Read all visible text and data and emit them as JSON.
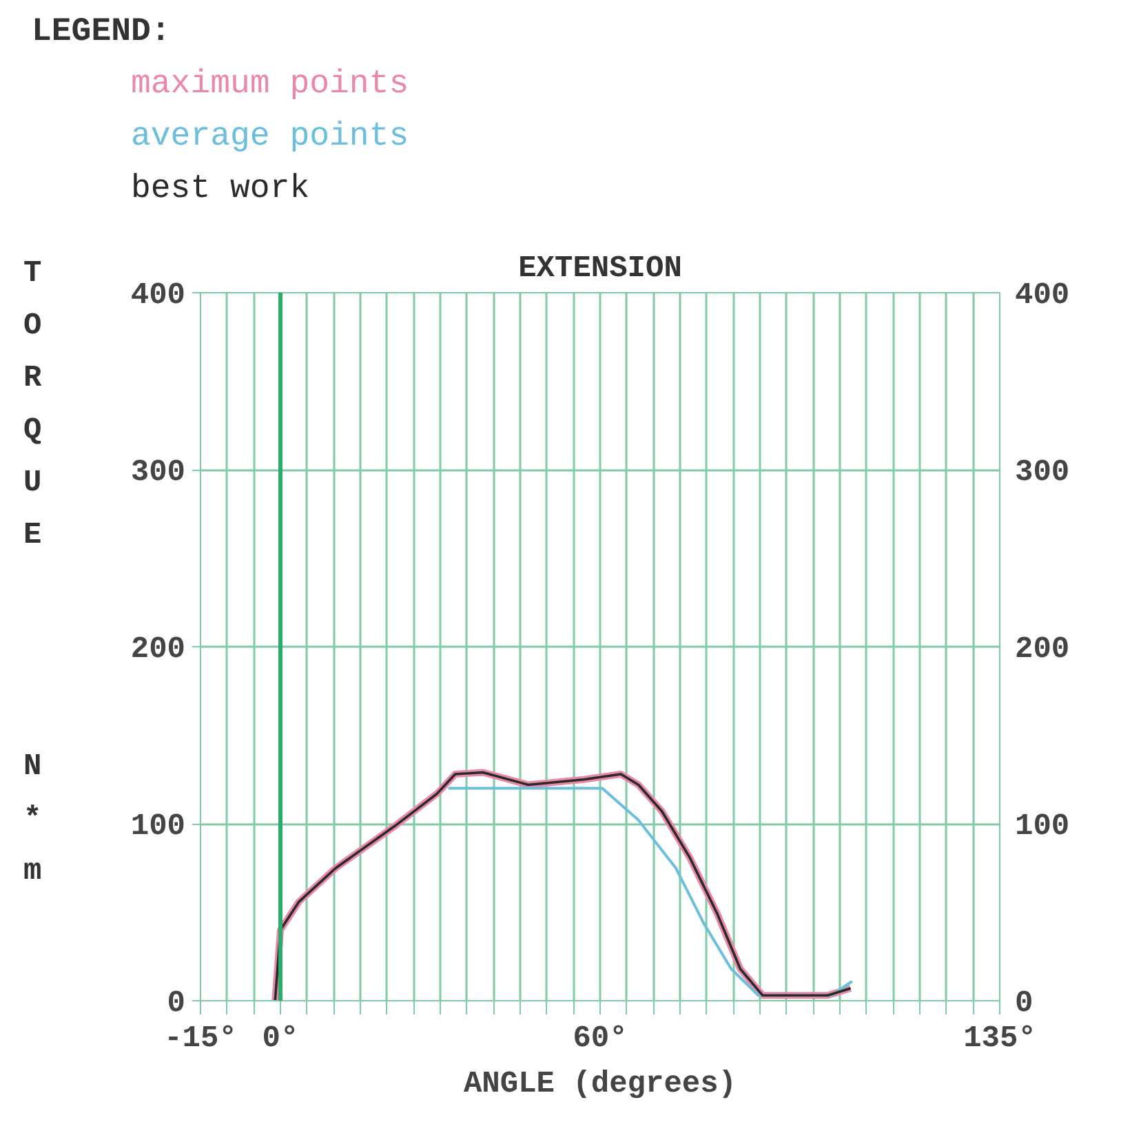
{
  "chart_data": {
    "type": "line",
    "title": "EXTENSION",
    "legend_title": "LEGEND:",
    "xlabel": "ANGLE (degrees)",
    "ylabel": "TORQUE N*m",
    "xlim": [
      -15,
      135
    ],
    "xticks": [
      {
        "value": -15,
        "label": "-15°"
      },
      {
        "value": -10,
        "label": null
      },
      {
        "value": -5,
        "label": null
      },
      {
        "value": 0,
        "label": "0°"
      },
      {
        "value": 5,
        "label": null
      },
      {
        "value": 10,
        "label": null
      },
      {
        "value": 15,
        "label": null
      },
      {
        "value": 20,
        "label": null
      },
      {
        "value": 25,
        "label": null
      },
      {
        "value": 30,
        "label": null
      },
      {
        "value": 35,
        "label": null
      },
      {
        "value": 40,
        "label": null
      },
      {
        "value": 45,
        "label": null
      },
      {
        "value": 50,
        "label": null
      },
      {
        "value": 55,
        "label": null
      },
      {
        "value": 60,
        "label": "60°"
      },
      {
        "value": 65,
        "label": null
      },
      {
        "value": 70,
        "label": null
      },
      {
        "value": 75,
        "label": null
      },
      {
        "value": 80,
        "label": null
      },
      {
        "value": 85,
        "label": null
      },
      {
        "value": 90,
        "label": null
      },
      {
        "value": 95,
        "label": null
      },
      {
        "value": 100,
        "label": null
      },
      {
        "value": 105,
        "label": null
      },
      {
        "value": 110,
        "label": null
      },
      {
        "value": 115,
        "label": null
      },
      {
        "value": 120,
        "label": null
      },
      {
        "value": 125,
        "label": null
      },
      {
        "value": 130,
        "label": null
      },
      {
        "value": 135,
        "label": "135°"
      }
    ],
    "ylim": [
      0,
      400
    ],
    "yticks": [
      0,
      100,
      200,
      300,
      400
    ],
    "y2lim": [
      0,
      400
    ],
    "y2ticks": [
      0,
      100,
      200,
      300,
      400
    ],
    "grid": true,
    "marker": "none",
    "line_style": "solid",
    "ref_lines": [
      {
        "axis": "x",
        "value": 0,
        "label": null,
        "color": "#2eaa6a"
      }
    ],
    "series": [
      {
        "name": "maximum points",
        "color": "#e889a8",
        "x": [
          -1,
          0,
          3.5,
          10.4,
          21.6,
          29.4,
          32.8,
          38,
          46.5,
          57,
          63.9,
          67.2,
          71.6,
          76.8,
          82,
          86.3,
          90.5,
          102.7,
          107
        ],
        "values": [
          0,
          40,
          56,
          75,
          99,
          117,
          128,
          129,
          122,
          125,
          128,
          122,
          107,
          81,
          49,
          18,
          3,
          3,
          7
        ]
      },
      {
        "name": "average points",
        "color": "#6bbfdc",
        "x": [
          31.5,
          40,
          50,
          60.4,
          67.2,
          74.2,
          79.4,
          84.6,
          89.7,
          103.4,
          107.3
        ],
        "values": [
          120,
          120,
          120,
          120,
          102,
          75,
          44,
          18,
          3,
          3,
          11
        ]
      },
      {
        "name": "best work",
        "color": "#2a2a2a",
        "x": [
          -1,
          0,
          3.5,
          10.4,
          21.6,
          29.4,
          32.8,
          38,
          46.5,
          57,
          63.9,
          67.2,
          71.6,
          76.8,
          82,
          86.3,
          90.5,
          102.7,
          107
        ],
        "values": [
          0,
          40,
          56,
          75,
          99,
          117,
          128,
          129,
          122,
          125,
          128,
          122,
          107,
          81,
          49,
          18,
          3,
          3,
          7
        ]
      }
    ]
  }
}
